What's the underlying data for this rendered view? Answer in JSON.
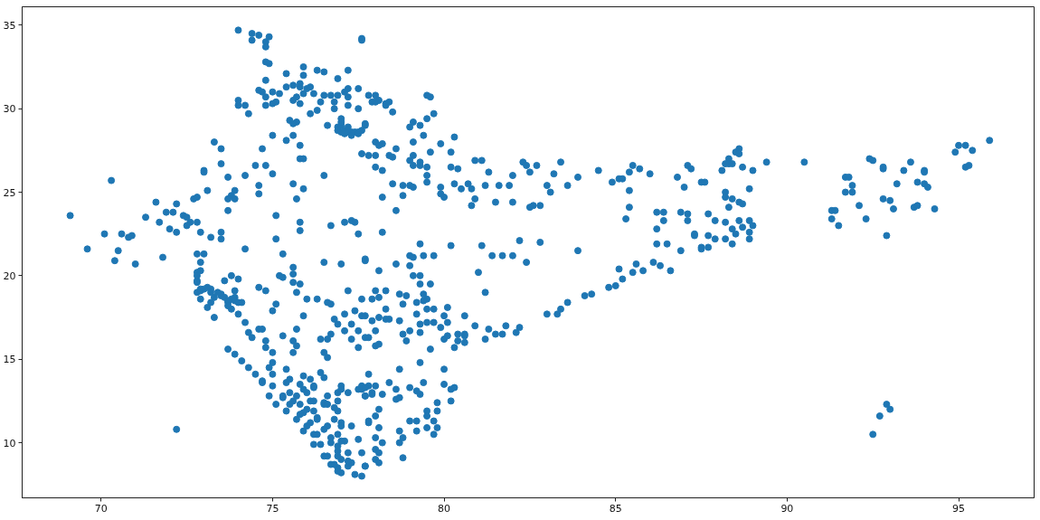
{
  "chart_data": {
    "type": "scatter",
    "color": "#1f77b4",
    "marker": "circle",
    "xlim": [
      67.7,
      97.2
    ],
    "ylim": [
      6.7,
      36.1
    ],
    "xticks": [
      70,
      75,
      80,
      85,
      90,
      95
    ],
    "yticks": [
      10,
      15,
      20,
      25,
      30,
      35
    ],
    "x": [
      74.0,
      74.4,
      74.4,
      74.6,
      74.9,
      74.8,
      74.8,
      77.6,
      77.6,
      74.8,
      74.9,
      74.8,
      75.4,
      75.9,
      75.9,
      76.3,
      76.5,
      77.2,
      76.9,
      74.6,
      74.7,
      75.0,
      74.8,
      75.2,
      74.0,
      74.0,
      74.2,
      74.3,
      74.8,
      75.0,
      75.1,
      75.4,
      75.6,
      75.8,
      76.0,
      75.9,
      75.7,
      75.6,
      75.8,
      75.8,
      76.1,
      76.2,
      76.4,
      76.3,
      76.1,
      76.5,
      76.7,
      76.9,
      76.8,
      76.8,
      77.1,
      77.2,
      77.5,
      77.2,
      77.5,
      77.2,
      76.6,
      76.9,
      77.0,
      77.1,
      77.2,
      77.3,
      77.4,
      77.5,
      77.0,
      77.0,
      77.0,
      77.7,
      75.5,
      75.7,
      75.6,
      75.0,
      75.4,
      75.6,
      75.8,
      73.3,
      73.5,
      74.7,
      75.8,
      75.9,
      73.5,
      73.0,
      73.0,
      74.5,
      74.8,
      75.0,
      76.5,
      73.7,
      74.2,
      73.1,
      73.9,
      73.8,
      73.7,
      73.9,
      74.6,
      74.6,
      75.6,
      75.9,
      75.7,
      70.3,
      69.1,
      71.6,
      71.9,
      72.1,
      72.2,
      72.4,
      72.5,
      72.6,
      72.5,
      72.8,
      72.7,
      72.8,
      73.7,
      71.3,
      71.7,
      72.0,
      72.2,
      70.1,
      70.6,
      70.8,
      70.9,
      69.6,
      70.5,
      72.9,
      73.2,
      73.5,
      73.5,
      74.2,
      75.1,
      75.1,
      75.3,
      75.8,
      75.8,
      76.7,
      77.1,
      77.3,
      77.4,
      77.5,
      72.8,
      73.0,
      71.8,
      70.4,
      71.0,
      72.2,
      72.8,
      72.8,
      72.8,
      72.9,
      73.1,
      73.3,
      72.9,
      73.0,
      73.2,
      73.5,
      73.8,
      73.9,
      74.0,
      73.6,
      73.8,
      74.0,
      73.9,
      74.1,
      73.5,
      73.7,
      73.8,
      74.0,
      73.2,
      73.1,
      73.2,
      74.6,
      74.8,
      75.2,
      75.3,
      75.6,
      75.6,
      75.8,
      75.6,
      75.7,
      76.0,
      76.3,
      76.6,
      76.7,
      75.1,
      75.0,
      75.9,
      75.7,
      76.5,
      77.0,
      77.7,
      77.2,
      77.6,
      77.1,
      76.8,
      76.9,
      77.3,
      77.1,
      77.4,
      77.5,
      77.6,
      76.7,
      76.6,
      76.4,
      76.5,
      76.6,
      76.4,
      76.5,
      77.3,
      77.5,
      77.8,
      75.3,
      75.6,
      75.7,
      75.6,
      75.4,
      74.8,
      74.8,
      75.0,
      75.0,
      74.9,
      75.0,
      74.2,
      74.3,
      74.4,
      74.6,
      74.7,
      73.7,
      73.9,
      74.1,
      74.3,
      74.5,
      74.7,
      74.9,
      75.1,
      75.4,
      75.7,
      75.9,
      76.2,
      76.5,
      76.7,
      77.0,
      77.4,
      75.8,
      76.0,
      76.2,
      76.5,
      76.0,
      76.3,
      76.6,
      76.3,
      76.7,
      76.9,
      77.0,
      77.2,
      76.9,
      77.0,
      76.6,
      76.9,
      75.8,
      76.2,
      76.9,
      77.3,
      77.0,
      77.2,
      77.5,
      77.7,
      76.5,
      76.9,
      77.3,
      77.5,
      77.6,
      77.7,
      76.9,
      77.0,
      77.1,
      77.2,
      77.2,
      77.8,
      77.8,
      77.8,
      75.5,
      75.3,
      75.6,
      75.9,
      76.1,
      75.5,
      75.9,
      76.1,
      74.7,
      75.0,
      75.3,
      75.5,
      75.8,
      76.0,
      76.2,
      76.4,
      76.6,
      76.8,
      76.9,
      75.4,
      75.9,
      75.7,
      76.1,
      76.2,
      76.3,
      76.5,
      76.7,
      76.9,
      76.9,
      77.0,
      76.8,
      76.8,
      76.6,
      77.0,
      77.6,
      77.9,
      76.2,
      72.8,
      72.9,
      73.4,
      73.6,
      73.7,
      73.9,
      73.7,
      72.9,
      72.9,
      72.8,
      73.3,
      77.1,
      77.3,
      77.5,
      77.6,
      77.2,
      76.9,
      77.7,
      77.8,
      78.0,
      77.9,
      78.0,
      78.1,
      78.3,
      78.3,
      78.4,
      78.5,
      79.5,
      79.6,
      79.7,
      79.5,
      79.1,
      79.3,
      79.0,
      79.4,
      79.1,
      80.3,
      78.0,
      78.1,
      78.2,
      78.6,
      77.8,
      78.0,
      78.4,
      78.5,
      77.6,
      79.1,
      79.0,
      79.1,
      79.3,
      79.3,
      79.5,
      79.9,
      80.2,
      79.6,
      78.0,
      78.2,
      80.2,
      80.4,
      80.9,
      81.1,
      79.5,
      79.5,
      79.9,
      79.9,
      80.0,
      78.5,
      78.8,
      79.0,
      79.1,
      78.2,
      78.8,
      78.6,
      78.2,
      80.3,
      80.5,
      80.7,
      80.8,
      80.9,
      80.8,
      81.3,
      81.2,
      81.6,
      81.5,
      81.9,
      82.0,
      82.0,
      82.3,
      82.4,
      82.5,
      82.7,
      82.5,
      82.6,
      82.8,
      83.0,
      83.1,
      83.2,
      83.4,
      83.6,
      83.9,
      84.5,
      84.9,
      85.1,
      85.2,
      85.4,
      85.4,
      85.5,
      85.7,
      85.4,
      85.3,
      86.0,
      86.8,
      87.0,
      87.1,
      87.2,
      87.5,
      86.2,
      86.4,
      86.4,
      86.2,
      86.2,
      86.5,
      86.9,
      87.1,
      87.1,
      87.3,
      86.9,
      87.5,
      79.0,
      79.4,
      79.7,
      80.2,
      81.1,
      81.4,
      81.7,
      82.0,
      82.2,
      82.8,
      83.9,
      79.3,
      77.7,
      78.1,
      78.6,
      79.0,
      79.1,
      79.1,
      79.3,
      79.3,
      79.6,
      81.0,
      81.2,
      82.4,
      78.0,
      78.3,
      77.9,
      78.1,
      78.7,
      78.9,
      78.8,
      79.2,
      79.4,
      79.5,
      79.4,
      77.7,
      77.9,
      78.1,
      78.3,
      78.4,
      78.7,
      78.3,
      78.0,
      77.7,
      78.0,
      78.1,
      78.8,
      79.0,
      78.9,
      79.2,
      79.3,
      79.3,
      79.5,
      79.7,
      79.5,
      79.7,
      79.6,
      79.9,
      80.1,
      80.0,
      80.1,
      79.3,
      78.7,
      80.0,
      80.0,
      80.2,
      80.2,
      80.3,
      80.4,
      80.6,
      80.6,
      80.4,
      80.6,
      80.3,
      80.0,
      80.1,
      80.6,
      80.9,
      81.2,
      81.3,
      81.5,
      81.7,
      81.8,
      82.1,
      82.2,
      77.6,
      77.7,
      78.0,
      77.7,
      77.9,
      78.2,
      78.4,
      78.6,
      78.1,
      78.0,
      77.8,
      78.1,
      78.0,
      78.2,
      78.0,
      78.1,
      78.0,
      78.1,
      77.7,
      77.6,
      78.6,
      78.7,
      79.0,
      79.2,
      79.3,
      79.4,
      79.5,
      79.5,
      79.7,
      79.8,
      79.8,
      79.8,
      79.7,
      79.5,
      79.2,
      79.2,
      79.0,
      78.7,
      78.7,
      78.8,
      78.8,
      83.0,
      83.3,
      83.4,
      83.6,
      84.1,
      84.3,
      84.8,
      85.0,
      85.2,
      85.1,
      85.5,
      85.6,
      85.8,
      86.1,
      86.3,
      86.6,
      88.5,
      88.6,
      88.6,
      88.3,
      88.3,
      88.2,
      88.4,
      88.1,
      88.7,
      89.0,
      89.4,
      90.5,
      87.6,
      88.2,
      88.2,
      88.4,
      88.6,
      88.7,
      88.9,
      88.3,
      87.7,
      87.9,
      88.2,
      88.6,
      88.9,
      89.0,
      88.4,
      88.5,
      88.7,
      88.9,
      87.7,
      87.9,
      88.2,
      88.4,
      88.9,
      87.5,
      87.7,
      87.3,
      91.3,
      91.4,
      91.3,
      91.5,
      92.3,
      92.9,
      91.7,
      91.8,
      91.7,
      91.9,
      91.9,
      92.1,
      92.4,
      92.5,
      92.8,
      92.8,
      92.8,
      93.0,
      93.1,
      93.2,
      93.4,
      93.6,
      93.8,
      94.0,
      94.0,
      94.0,
      94.1,
      93.7,
      93.8,
      94.3,
      94.9,
      95.0,
      95.2,
      95.4,
      95.2,
      95.3,
      95.9,
      92.9,
      93.0,
      92.7,
      92.5
    ],
    "values": [
      34.7,
      34.5,
      34.1,
      34.4,
      34.3,
      34.0,
      33.7,
      34.2,
      34.1,
      32.8,
      32.7,
      31.7,
      32.1,
      32.5,
      32.0,
      32.3,
      32.2,
      32.3,
      31.8,
      31.1,
      31.0,
      31.0,
      30.7,
      30.9,
      30.5,
      30.2,
      30.2,
      29.7,
      30.2,
      30.3,
      30.4,
      31.3,
      31.4,
      31.3,
      31.2,
      30.9,
      30.7,
      30.5,
      30.3,
      31.5,
      31.3,
      30.9,
      30.4,
      29.9,
      29.7,
      30.8,
      30.8,
      30.8,
      30.4,
      30.0,
      31.0,
      31.2,
      31.2,
      30.7,
      30.0,
      30.2,
      29.0,
      28.9,
      28.6,
      28.7,
      28.6,
      28.6,
      28.6,
      28.6,
      29.0,
      29.4,
      29.2,
      29.0,
      29.3,
      29.2,
      29.1,
      28.4,
      28.1,
      28.4,
      27.8,
      28.0,
      27.6,
      27.6,
      27.0,
      27.0,
      26.7,
      26.3,
      26.2,
      26.6,
      26.6,
      26.1,
      26.0,
      25.9,
      26.0,
      25.1,
      25.1,
      24.8,
      24.6,
      24.6,
      25.4,
      24.9,
      25.5,
      25.2,
      24.6,
      25.7,
      23.6,
      24.4,
      23.8,
      23.8,
      24.3,
      23.6,
      23.5,
      23.2,
      23.0,
      23.2,
      24.6,
      24.7,
      23.9,
      23.5,
      23.2,
      22.8,
      22.6,
      22.5,
      22.5,
      22.3,
      22.4,
      21.6,
      21.5,
      22.6,
      22.3,
      22.6,
      22.2,
      21.6,
      23.6,
      22.2,
      21.3,
      23.2,
      22.7,
      23.0,
      23.2,
      23.3,
      23.2,
      22.5,
      21.3,
      21.3,
      21.1,
      20.9,
      20.7,
      10.8,
      20.2,
      19.7,
      19.0,
      18.6,
      18.1,
      17.5,
      19.1,
      19.2,
      19.0,
      18.8,
      18.6,
      18.5,
      18.4,
      19.7,
      20.0,
      19.8,
      19.1,
      18.4,
      18.9,
      18.4,
      18.0,
      17.7,
      19.2,
      19.3,
      18.4,
      19.3,
      19.1,
      20.0,
      19.9,
      20.1,
      19.6,
      19.5,
      20.5,
      19.0,
      18.6,
      18.6,
      18.4,
      18.3,
      18.3,
      17.9,
      17.6,
      16.8,
      20.8,
      20.7,
      20.9,
      19.1,
      18.6,
      17.7,
      17.4,
      17.1,
      17.1,
      16.7,
      17.9,
      16.7,
      17.6,
      16.5,
      16.2,
      16.2,
      15.4,
      15.1,
      14.2,
      13.9,
      16.2,
      15.7,
      16.3,
      16.4,
      16.1,
      15.8,
      15.4,
      14.4,
      16.1,
      15.7,
      15.4,
      14.8,
      14.5,
      14.1,
      17.2,
      16.6,
      16.3,
      16.8,
      16.8,
      15.6,
      15.3,
      14.9,
      14.5,
      14.1,
      13.6,
      12.8,
      12.3,
      11.9,
      11.4,
      10.7,
      9.9,
      9.2,
      8.7,
      8.2,
      8.1,
      13.5,
      13.0,
      12.5,
      12.3,
      12.0,
      11.5,
      11.0,
      10.5,
      10.0,
      9.5,
      9.0,
      8.6,
      10.5,
      11.0,
      12.8,
      13.0,
      12.3,
      13.3,
      8.5,
      8.8,
      13.4,
      13.0,
      13.2,
      12.8,
      12.4,
      12.5,
      11.0,
      10.2,
      9.4,
      8.6,
      11.9,
      11.2,
      10.1,
      9.4,
      8.9,
      14.1,
      13.4,
      11.2,
      13.0,
      12.7,
      12.5,
      11.8,
      11.2,
      13.8,
      14.0,
      13.8,
      13.7,
      13.4,
      12.8,
      12.3,
      11.7,
      11.0,
      10.5,
      9.9,
      9.2,
      8.7,
      8.3,
      13.6,
      13.2,
      12.8,
      12.5,
      11.9,
      11.4,
      10.8,
      10.3,
      9.8,
      9.2,
      10.1,
      11.4,
      12.1,
      12.3,
      13.2,
      13.2,
      13.0,
      13.4,
      19.6,
      19.2,
      19.0,
      18.7,
      18.5,
      18.7,
      18.2,
      20.3,
      20.8,
      20.0,
      18.7,
      28.5,
      28.4,
      28.5,
      28.7,
      28.9,
      28.7,
      29.1,
      30.8,
      30.8,
      30.4,
      30.4,
      30.5,
      30.2,
      30.3,
      30.4,
      29.8,
      30.8,
      30.7,
      29.7,
      29.4,
      29.2,
      29.0,
      28.9,
      28.4,
      28.0,
      28.3,
      28.0,
      27.8,
      27.9,
      27.6,
      27.2,
      27.2,
      27.2,
      27.1,
      27.3,
      27.2,
      26.9,
      26.6,
      26.8,
      26.6,
      26.5,
      27.9,
      27.4,
      27.4,
      26.5,
      26.3,
      26.5,
      26.4,
      26.9,
      26.9,
      26.0,
      25.6,
      25.3,
      24.9,
      24.7,
      25.5,
      25.4,
      25.4,
      25.3,
      24.7,
      24.8,
      23.9,
      22.6,
      25.5,
      25.2,
      25.5,
      25.2,
      24.6,
      24.2,
      26.2,
      25.4,
      25.4,
      24.4,
      25.4,
      26.0,
      24.4,
      26.8,
      26.6,
      26.2,
      26.6,
      24.1,
      24.2,
      24.2,
      25.4,
      25.0,
      26.1,
      26.8,
      25.4,
      25.9,
      26.3,
      25.6,
      25.8,
      25.8,
      25.1,
      26.2,
      26.6,
      26.4,
      24.1,
      23.4,
      26.1,
      25.9,
      25.3,
      26.6,
      26.4,
      25.6,
      23.8,
      23.8,
      23.3,
      22.8,
      21.9,
      21.9,
      23.8,
      23.7,
      23.3,
      22.5,
      21.5,
      21.6,
      21.2,
      21.2,
      21.2,
      21.8,
      21.8,
      21.2,
      21.2,
      21.2,
      22.1,
      22.0,
      21.5,
      21.9,
      21.0,
      20.3,
      20.7,
      20.6,
      21.1,
      20.0,
      20.0,
      19.5,
      19.5,
      20.2,
      19.0,
      20.8,
      19.1,
      19.1,
      18.6,
      18.7,
      18.9,
      18.8,
      18.3,
      18.4,
      18.9,
      18.6,
      18.5,
      17.6,
      17.3,
      17.5,
      17.4,
      17.4,
      17.3,
      18.0,
      16.7,
      16.3,
      15.8,
      15.9,
      16.5,
      16.7,
      16.1,
      17.7,
      16.6,
      17.1,
      17.2,
      17.2,
      18.0,
      18.0,
      15.6,
      16.9,
      18.1,
      17.6,
      17.2,
      14.8,
      14.4,
      14.4,
      13.5,
      13.2,
      12.5,
      13.3,
      16.5,
      16.5,
      16.4,
      16.1,
      16.0,
      15.7,
      16.2,
      16.4,
      17.6,
      17.0,
      16.2,
      16.8,
      16.5,
      16.5,
      17.0,
      16.6,
      16.9,
      13.4,
      13.3,
      13.4,
      12.8,
      12.9,
      12.9,
      13.6,
      13.2,
      12.0,
      11.6,
      11.3,
      10.9,
      10.3,
      10.0,
      9.6,
      9.4,
      9.0,
      8.8,
      8.6,
      8.0,
      12.6,
      12.7,
      13.3,
      13.1,
      12.9,
      13.6,
      11.9,
      11.6,
      11.3,
      11.9,
      12.4,
      10.9,
      10.5,
      10.9,
      10.7,
      11.3,
      11.3,
      10.0,
      10.7,
      10.3,
      9.1,
      17.7,
      17.7,
      18.0,
      18.4,
      18.8,
      18.9,
      19.3,
      19.4,
      19.8,
      20.4,
      20.2,
      20.7,
      20.3,
      20.8,
      20.6,
      20.3,
      27.4,
      27.6,
      27.3,
      27.0,
      26.7,
      26.7,
      26.7,
      26.3,
      26.5,
      26.3,
      26.8,
      26.8,
      25.6,
      25.0,
      24.7,
      24.6,
      24.4,
      24.3,
      25.2,
      24.1,
      23.7,
      23.3,
      23.2,
      23.3,
      23.3,
      23.0,
      22.8,
      22.5,
      22.9,
      22.6,
      22.4,
      22.2,
      22.2,
      21.9,
      22.2,
      21.7,
      21.7,
      22.4,
      23.9,
      23.9,
      23.4,
      23.0,
      23.4,
      22.4,
      25.9,
      25.9,
      25.0,
      25.4,
      25.0,
      24.2,
      27.0,
      26.9,
      26.5,
      26.4,
      24.6,
      24.5,
      24.0,
      25.5,
      26.3,
      26.8,
      25.6,
      26.3,
      26.2,
      25.5,
      25.3,
      24.1,
      24.2,
      24.0,
      27.4,
      27.8,
      27.8,
      27.5,
      26.5,
      26.6,
      28.1,
      12.3,
      12.0,
      11.6,
      10.5
    ]
  }
}
